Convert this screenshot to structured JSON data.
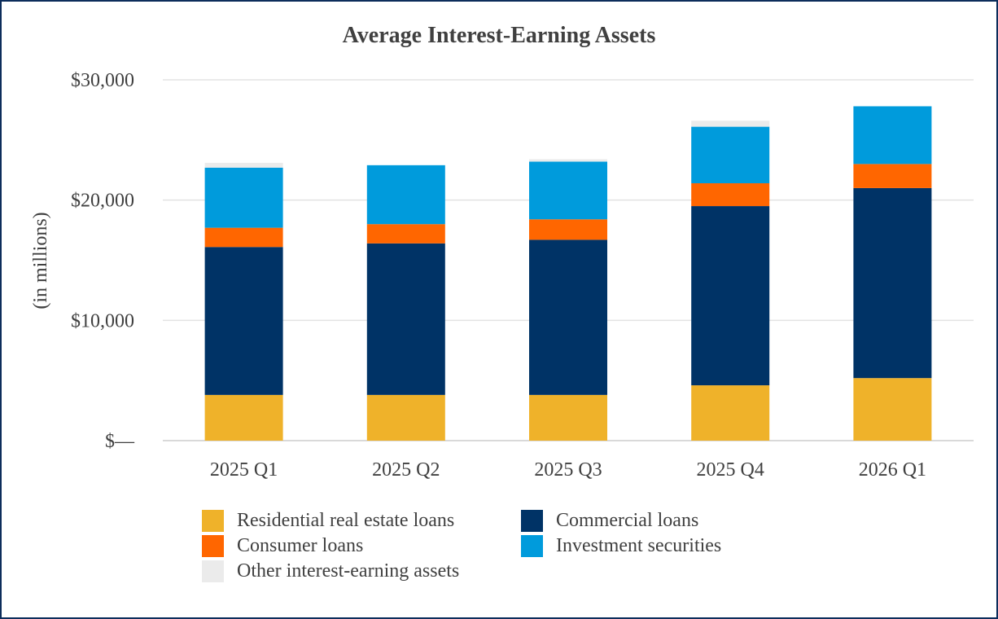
{
  "chart_data": {
    "type": "bar",
    "stacked": true,
    "title": "Average Interest-Earning Assets",
    "ylabel": "(in millions)",
    "xlabel": "",
    "categories": [
      "2025 Q1",
      "2025 Q2",
      "2025 Q3",
      "2025 Q4",
      "2026 Q1"
    ],
    "y_tick_labels": [
      "$—",
      "$10,000",
      "$20,000",
      "$30,000"
    ],
    "y_tick_values": [
      0,
      10000,
      20000,
      30000
    ],
    "ylim": [
      0,
      30000
    ],
    "grid": true,
    "legend_position": "bottom",
    "series": [
      {
        "name": "Residential real estate loans",
        "color": "#efb22a",
        "values": [
          3800,
          3800,
          3800,
          4600,
          5200
        ]
      },
      {
        "name": "Commercial loans",
        "color": "#003366",
        "values": [
          12300,
          12600,
          12900,
          14900,
          15800
        ]
      },
      {
        "name": "Consumer loans",
        "color": "#ff6600",
        "values": [
          1600,
          1600,
          1700,
          1900,
          2000
        ]
      },
      {
        "name": "Investment securities",
        "color": "#009bdc",
        "values": [
          5000,
          4900,
          4800,
          4700,
          4800
        ]
      },
      {
        "name": "Other interest-earning assets",
        "color": "#ebebeb",
        "values": [
          400,
          0,
          200,
          500,
          0
        ]
      }
    ]
  }
}
